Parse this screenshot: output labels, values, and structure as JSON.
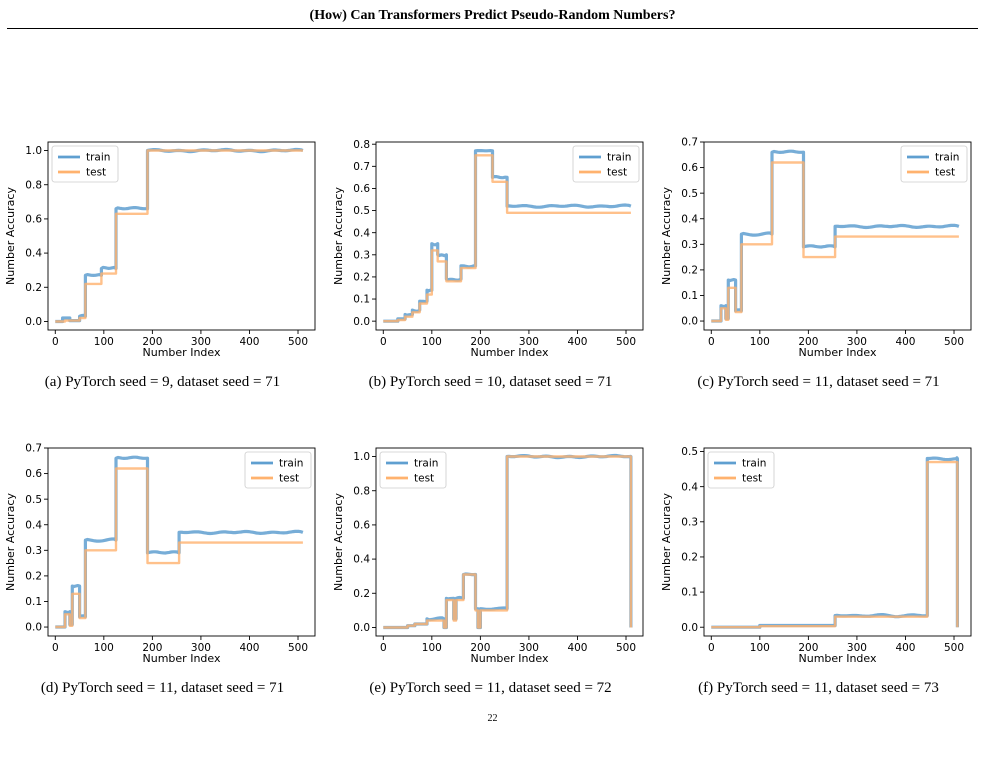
{
  "header": {
    "running_title": "(How) Can Transformers Predict Pseudo-Random Numbers?"
  },
  "page_number": "22",
  "colors": {
    "train": "#5f9fd0",
    "test": "#ffb26e"
  },
  "chart_data": [
    {
      "type": "line",
      "caption": "(a) PyTorch seed = 9, dataset seed = 71",
      "xlabel": "Number Index",
      "ylabel": "Number Accuracy",
      "xlim": [
        -15,
        535
      ],
      "ylim": [
        -0.05,
        1.05
      ],
      "xticks": [
        0,
        100,
        200,
        300,
        400,
        500
      ],
      "xtick_labels": [
        "0",
        "100",
        "200",
        "300",
        "400",
        "500"
      ],
      "yticks": [
        0,
        0.2,
        0.4,
        0.6,
        0.8,
        1.0
      ],
      "ytick_labels": [
        "0.0",
        "0.2",
        "0.4",
        "0.6",
        "0.8",
        "1.0"
      ],
      "legend": "top-left",
      "grid": false,
      "series": [
        {
          "name": "train",
          "color": "#5f9fd0",
          "steps": [
            [
              0,
              0.0
            ],
            [
              15,
              0.02
            ],
            [
              30,
              0.005
            ],
            [
              50,
              0.03
            ],
            [
              62,
              0.27
            ],
            [
              95,
              0.31
            ],
            [
              125,
              0.66
            ],
            [
              190,
              1.0
            ],
            [
              510,
              1.0
            ]
          ]
        },
        {
          "name": "test",
          "color": "#ffb26e",
          "steps": [
            [
              0,
              0.0
            ],
            [
              20,
              0.005
            ],
            [
              50,
              0.02
            ],
            [
              62,
              0.22
            ],
            [
              95,
              0.28
            ],
            [
              125,
              0.63
            ],
            [
              190,
              1.0
            ],
            [
              510,
              1.0
            ]
          ]
        }
      ]
    },
    {
      "type": "line",
      "caption": "(b) PyTorch seed = 10, dataset seed = 71",
      "xlabel": "Number Index",
      "ylabel": "Number Accuracy",
      "xlim": [
        -15,
        535
      ],
      "ylim": [
        -0.04,
        0.81
      ],
      "xticks": [
        0,
        100,
        200,
        300,
        400,
        500
      ],
      "xtick_labels": [
        "0",
        "100",
        "200",
        "300",
        "400",
        "500"
      ],
      "yticks": [
        0,
        0.1,
        0.2,
        0.3,
        0.4,
        0.5,
        0.6,
        0.7,
        0.8
      ],
      "ytick_labels": [
        "0.0",
        "0.1",
        "0.2",
        "0.3",
        "0.4",
        "0.5",
        "0.6",
        "0.7",
        "0.8"
      ],
      "legend": "top-right",
      "grid": false,
      "series": [
        {
          "name": "train",
          "color": "#5f9fd0",
          "steps": [
            [
              0,
              0.0
            ],
            [
              30,
              0.01
            ],
            [
              45,
              0.03
            ],
            [
              60,
              0.05
            ],
            [
              75,
              0.09
            ],
            [
              90,
              0.14
            ],
            [
              100,
              0.35
            ],
            [
              112,
              0.3
            ],
            [
              130,
              0.19
            ],
            [
              160,
              0.25
            ],
            [
              190,
              0.77
            ],
            [
              225,
              0.65
            ],
            [
              255,
              0.52
            ],
            [
              510,
              0.52
            ]
          ]
        },
        {
          "name": "test",
          "color": "#ffb26e",
          "steps": [
            [
              0,
              0.0
            ],
            [
              30,
              0.005
            ],
            [
              45,
              0.02
            ],
            [
              60,
              0.04
            ],
            [
              75,
              0.08
            ],
            [
              90,
              0.12
            ],
            [
              100,
              0.32
            ],
            [
              112,
              0.27
            ],
            [
              130,
              0.18
            ],
            [
              160,
              0.24
            ],
            [
              190,
              0.75
            ],
            [
              225,
              0.63
            ],
            [
              255,
              0.49
            ],
            [
              510,
              0.49
            ]
          ]
        }
      ]
    },
    {
      "type": "line",
      "caption": "(c) PyTorch seed = 11, dataset seed = 71",
      "xlabel": "Number Index",
      "ylabel": "Number Accuracy",
      "xlim": [
        -15,
        535
      ],
      "ylim": [
        -0.035,
        0.7
      ],
      "xticks": [
        0,
        100,
        200,
        300,
        400,
        500
      ],
      "xtick_labels": [
        "0",
        "100",
        "200",
        "300",
        "400",
        "500"
      ],
      "yticks": [
        0,
        0.1,
        0.2,
        0.3,
        0.4,
        0.5,
        0.6,
        0.7
      ],
      "ytick_labels": [
        "0.0",
        "0.1",
        "0.2",
        "0.3",
        "0.4",
        "0.5",
        "0.6",
        "0.7"
      ],
      "legend": "top-right",
      "grid": false,
      "series": [
        {
          "name": "train",
          "color": "#5f9fd0",
          "steps": [
            [
              0,
              0.0
            ],
            [
              20,
              0.06
            ],
            [
              30,
              0.01
            ],
            [
              35,
              0.16
            ],
            [
              50,
              0.04
            ],
            [
              62,
              0.34
            ],
            [
              125,
              0.66
            ],
            [
              190,
              0.29
            ],
            [
              255,
              0.37
            ],
            [
              510,
              0.37
            ]
          ]
        },
        {
          "name": "test",
          "color": "#ffb26e",
          "steps": [
            [
              0,
              0.0
            ],
            [
              20,
              0.05
            ],
            [
              30,
              0.005
            ],
            [
              35,
              0.13
            ],
            [
              50,
              0.035
            ],
            [
              62,
              0.3
            ],
            [
              125,
              0.62
            ],
            [
              190,
              0.25
            ],
            [
              255,
              0.33
            ],
            [
              510,
              0.33
            ]
          ]
        }
      ]
    },
    {
      "type": "line",
      "caption": "(d) PyTorch seed = 11, dataset seed = 71",
      "xlabel": "Number Index",
      "ylabel": "Number Accuracy",
      "xlim": [
        -15,
        535
      ],
      "ylim": [
        -0.035,
        0.7
      ],
      "xticks": [
        0,
        100,
        200,
        300,
        400,
        500
      ],
      "xtick_labels": [
        "0",
        "100",
        "200",
        "300",
        "400",
        "500"
      ],
      "yticks": [
        0,
        0.1,
        0.2,
        0.3,
        0.4,
        0.5,
        0.6,
        0.7
      ],
      "ytick_labels": [
        "0.0",
        "0.1",
        "0.2",
        "0.3",
        "0.4",
        "0.5",
        "0.6",
        "0.7"
      ],
      "legend": "top-right",
      "grid": false,
      "series": [
        {
          "name": "train",
          "color": "#5f9fd0",
          "steps": [
            [
              0,
              0.0
            ],
            [
              20,
              0.06
            ],
            [
              30,
              0.01
            ],
            [
              35,
              0.16
            ],
            [
              50,
              0.04
            ],
            [
              62,
              0.34
            ],
            [
              125,
              0.66
            ],
            [
              190,
              0.29
            ],
            [
              255,
              0.37
            ],
            [
              510,
              0.37
            ]
          ]
        },
        {
          "name": "test",
          "color": "#ffb26e",
          "steps": [
            [
              0,
              0.0
            ],
            [
              20,
              0.05
            ],
            [
              30,
              0.005
            ],
            [
              35,
              0.13
            ],
            [
              50,
              0.035
            ],
            [
              62,
              0.3
            ],
            [
              125,
              0.62
            ],
            [
              190,
              0.25
            ],
            [
              255,
              0.33
            ],
            [
              510,
              0.33
            ]
          ]
        }
      ]
    },
    {
      "type": "line",
      "caption": "(e) PyTorch seed = 11, dataset seed = 72",
      "xlabel": "Number Index",
      "ylabel": "Number Accuracy",
      "xlim": [
        -15,
        535
      ],
      "ylim": [
        -0.05,
        1.05
      ],
      "xticks": [
        0,
        100,
        200,
        300,
        400,
        500
      ],
      "xtick_labels": [
        "0",
        "100",
        "200",
        "300",
        "400",
        "500"
      ],
      "yticks": [
        0,
        0.2,
        0.4,
        0.6,
        0.8,
        1.0
      ],
      "ytick_labels": [
        "0.0",
        "0.2",
        "0.4",
        "0.6",
        "0.8",
        "1.0"
      ],
      "legend": "top-left",
      "grid": false,
      "series": [
        {
          "name": "train",
          "color": "#5f9fd0",
          "steps": [
            [
              0,
              0.0
            ],
            [
              50,
              0.01
            ],
            [
              65,
              0.02
            ],
            [
              90,
              0.05
            ],
            [
              125,
              0.0
            ],
            [
              130,
              0.17
            ],
            [
              145,
              0.05
            ],
            [
              150,
              0.17
            ],
            [
              165,
              0.31
            ],
            [
              190,
              0.11
            ],
            [
              195,
              0.0
            ],
            [
              200,
              0.11
            ],
            [
              255,
              1.0
            ],
            [
              508,
              1.0
            ],
            [
              510,
              0.0
            ]
          ]
        },
        {
          "name": "test",
          "color": "#ffb26e",
          "steps": [
            [
              0,
              0.0
            ],
            [
              50,
              0.01
            ],
            [
              65,
              0.02
            ],
            [
              90,
              0.04
            ],
            [
              125,
              0.0
            ],
            [
              130,
              0.16
            ],
            [
              145,
              0.04
            ],
            [
              150,
              0.16
            ],
            [
              165,
              0.31
            ],
            [
              190,
              0.1
            ],
            [
              195,
              0.0
            ],
            [
              200,
              0.1
            ],
            [
              255,
              1.0
            ],
            [
              508,
              1.0
            ],
            [
              510,
              0.0
            ]
          ]
        }
      ]
    },
    {
      "type": "line",
      "caption": "(f) PyTorch seed = 11, dataset seed = 73",
      "xlabel": "Number Index",
      "ylabel": "Number Accuracy",
      "xlim": [
        -15,
        535
      ],
      "ylim": [
        -0.025,
        0.51
      ],
      "xticks": [
        0,
        100,
        200,
        300,
        400,
        500
      ],
      "xtick_labels": [
        "0",
        "100",
        "200",
        "300",
        "400",
        "500"
      ],
      "yticks": [
        0,
        0.1,
        0.2,
        0.3,
        0.4,
        0.5
      ],
      "ytick_labels": [
        "0.0",
        "0.1",
        "0.2",
        "0.3",
        "0.4",
        "0.5"
      ],
      "legend": "top-left",
      "grid": false,
      "series": [
        {
          "name": "train",
          "color": "#5f9fd0",
          "steps": [
            [
              0,
              0.0
            ],
            [
              100,
              0.005
            ],
            [
              255,
              0.033
            ],
            [
              445,
              0.48
            ],
            [
              505,
              0.48
            ],
            [
              507,
              0.0
            ]
          ]
        },
        {
          "name": "test",
          "color": "#ffb26e",
          "steps": [
            [
              0,
              0.0
            ],
            [
              100,
              0.003
            ],
            [
              255,
              0.03
            ],
            [
              445,
              0.47
            ],
            [
              505,
              0.47
            ],
            [
              507,
              0.0
            ]
          ]
        }
      ]
    }
  ]
}
